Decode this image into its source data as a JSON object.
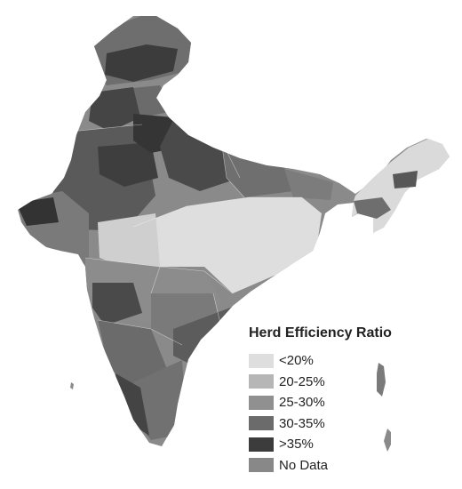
{
  "legend": {
    "title": "Herd Efficiency Ratio",
    "items": [
      {
        "label": "<20%",
        "color": "#dedede"
      },
      {
        "label": "20-25%",
        "color": "#b6b6b6"
      },
      {
        "label": "25-30%",
        "color": "#909090"
      },
      {
        "label": "30-35%",
        "color": "#6b6b6b"
      },
      {
        "label": ">35%",
        "color": "#3c3c3c"
      },
      {
        "label": "No Data",
        "color": "#888888"
      }
    ]
  }
}
